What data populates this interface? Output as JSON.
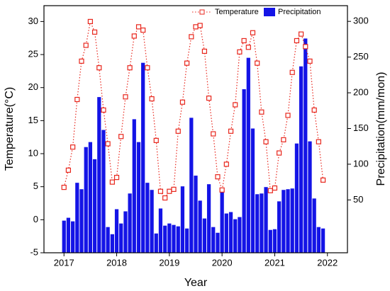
{
  "chart_data": {
    "type": "combo",
    "xlabel": "Year",
    "ylabel": "Temperature(°C)",
    "y2label": "Precipitation(mm/mon)",
    "x": [
      2017,
      2017.083,
      2017.167,
      2017.25,
      2017.333,
      2017.417,
      2017.5,
      2017.583,
      2017.667,
      2017.75,
      2017.833,
      2017.917,
      2018,
      2018.083,
      2018.167,
      2018.25,
      2018.333,
      2018.417,
      2018.5,
      2018.583,
      2018.667,
      2018.75,
      2018.833,
      2018.917,
      2019,
      2019.083,
      2019.167,
      2019.25,
      2019.333,
      2019.417,
      2019.5,
      2019.583,
      2019.667,
      2019.75,
      2019.833,
      2019.917,
      2020,
      2020.083,
      2020.167,
      2020.25,
      2020.333,
      2020.417,
      2020.5,
      2020.583,
      2020.667,
      2020.75,
      2020.833,
      2020.917,
      2021,
      2021.083,
      2021.167,
      2021.25,
      2021.333,
      2021.417,
      2021.5,
      2021.583,
      2021.667,
      2021.75,
      2021.833,
      2021.917
    ],
    "series": [
      {
        "name": "Temperature",
        "type": "line",
        "axis": "y",
        "color": "#e8261c",
        "values": [
          4.9,
          7.5,
          11.0,
          18.2,
          24.0,
          26.4,
          30.0,
          28.4,
          23.0,
          16.6,
          11.5,
          5.7,
          6.4,
          12.6,
          18.6,
          23.0,
          27.8,
          29.2,
          28.7,
          23.0,
          18.3,
          12.0,
          4.3,
          3.3,
          4.3,
          4.6,
          13.4,
          17.8,
          23.7,
          27.7,
          29.2,
          29.4,
          25.5,
          18.4,
          13.0,
          6.5,
          4.5,
          8.4,
          13.4,
          17.4,
          25.4,
          27.1,
          26.1,
          28.3,
          23.7,
          16.3,
          11.8,
          4.4,
          4.8,
          10.1,
          12.1,
          15.8,
          22.3,
          27.1,
          28.1,
          26.2,
          24.0,
          16.6,
          11.8,
          6.0
        ]
      },
      {
        "name": "Precipitation",
        "type": "bar",
        "axis": "y2",
        "color": "#1414e6",
        "values": [
          21,
          25,
          20,
          74,
          65,
          124,
          131,
          107,
          194,
          148,
          12,
          2,
          37,
          17,
          34,
          59,
          163,
          131,
          242,
          74,
          64,
          3,
          38,
          14,
          17,
          15,
          13,
          69,
          10,
          165,
          84,
          49,
          24,
          72,
          12,
          4,
          64,
          31,
          33,
          23,
          26,
          205,
          249,
          150,
          58,
          59,
          68,
          8,
          9,
          48,
          64,
          65,
          66,
          129,
          237,
          276,
          132,
          52,
          12,
          10
        ]
      }
    ],
    "xlim": [
      2016.62,
      2022.38
    ],
    "xticks": [
      2017,
      2018,
      2019,
      2020,
      2021,
      2022
    ],
    "ylim": [
      -5,
      32.4
    ],
    "yticks": [
      -5,
      0,
      5,
      10,
      15,
      20,
      25,
      30
    ],
    "y2lim": [
      -24,
      322
    ],
    "y2ticks": [
      50,
      100,
      150,
      200,
      250,
      300
    ],
    "legend": "upper right"
  }
}
